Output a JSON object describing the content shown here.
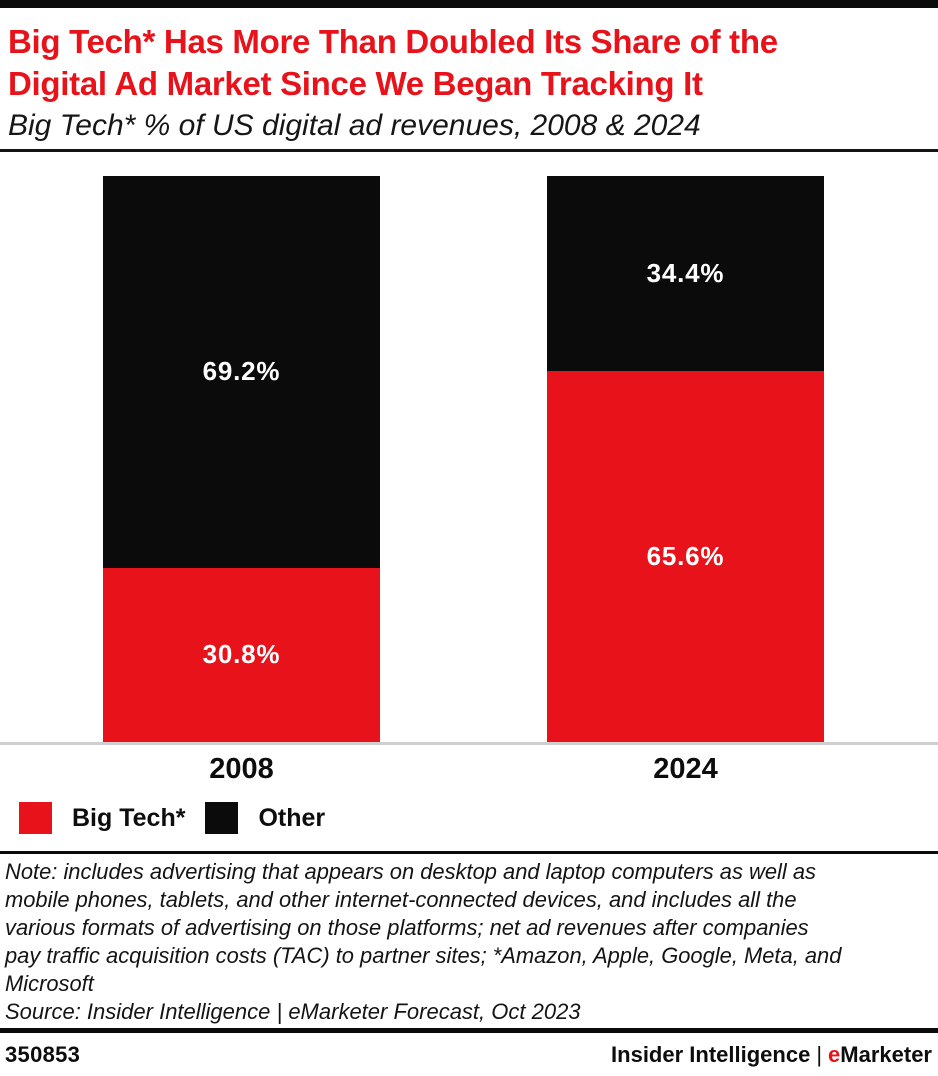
{
  "colors": {
    "accent_red": "#e8121b",
    "bar_black": "#0b0b0b",
    "baseline_gray": "#cfcfcf"
  },
  "header": {
    "title_line1": "Big Tech* Has More Than Doubled Its Share of the",
    "title_line2": "Digital Ad Market Since We Began Tracking It",
    "subtitle": "Big Tech* % of US digital ad revenues, 2008 & 2024"
  },
  "chart_data": {
    "type": "bar",
    "stacked": true,
    "title": "Big Tech* % of US digital ad revenues, 2008 & 2024",
    "categories": [
      "2008",
      "2024"
    ],
    "series": [
      {
        "name": "Big Tech*",
        "color": "#e8121b",
        "values": [
          30.8,
          65.6
        ],
        "labels": [
          "30.8%",
          "65.6%"
        ]
      },
      {
        "name": "Other",
        "color": "#0b0b0b",
        "values": [
          69.2,
          34.4
        ],
        "labels": [
          "69.2%",
          "34.4%"
        ]
      }
    ],
    "value_unit": "%",
    "ylim": [
      0,
      100
    ],
    "grid": false,
    "y_axis_visible": false,
    "legend_position": "bottom-left",
    "data_labels": "inside-center-white"
  },
  "notes": {
    "note_lines": [
      "Note: includes advertising that appears on desktop and laptop computers as well as",
      "mobile phones, tablets, and other internet-connected devices, and includes all the",
      "various formats of advertising on those platforms; net ad revenues after companies",
      "pay traffic acquisition costs (TAC) to partner sites; *Amazon, Apple, Google, Meta, and",
      "Microsoft"
    ],
    "source": "Source: Insider Intelligence | eMarketer Forecast, Oct 2023"
  },
  "footer": {
    "chart_id": "350853",
    "brand_left": "Insider Intelligence",
    "brand_separator": "|",
    "brand_e": "e",
    "brand_rest": "Marketer"
  }
}
